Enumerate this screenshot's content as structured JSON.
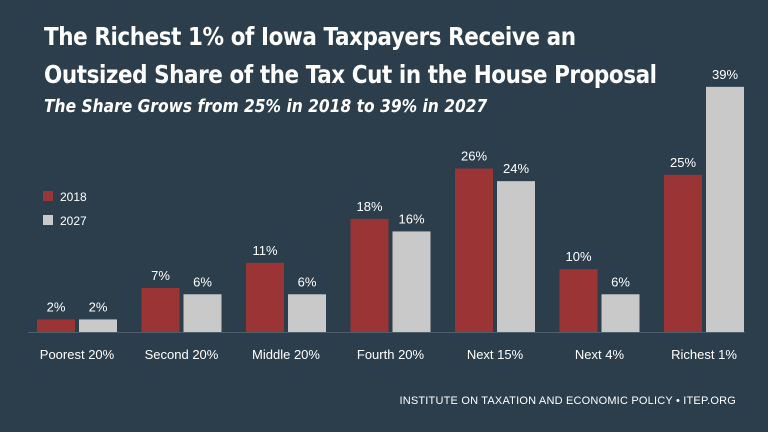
{
  "title_line1": "The Richest 1% of Iowa Taxpayers Receive an",
  "title_line2": "Outsized Share of the Tax Cut in the House Proposal",
  "subtitle": "The Share Grows from 25% in 2018 to 39% in 2027",
  "footer": "INSTITUTE ON TAXATION AND ECONOMIC POLICY • ITEP.ORG",
  "colors": {
    "background": "#2c3e4c",
    "series_2018": "#9b3535",
    "series_2027": "#c9c9c9"
  },
  "chart_data": {
    "type": "bar",
    "categories": [
      "Poorest 20%",
      "Second 20%",
      "Middle 20%",
      "Fourth 20%",
      "Next 15%",
      "Next 4%",
      "Richest 1%"
    ],
    "series": [
      {
        "name": "2018",
        "values": [
          2,
          7,
          11,
          18,
          26,
          10,
          25
        ],
        "labels": [
          "2%",
          "7%",
          "11%",
          "18%",
          "26%",
          "10%",
          "25%"
        ]
      },
      {
        "name": "2027",
        "values": [
          2,
          6,
          6,
          16,
          24,
          6,
          39
        ],
        "labels": [
          "2%",
          "6%",
          "6%",
          "16%",
          "24%",
          "6%",
          "39%"
        ]
      }
    ],
    "ylim": [
      0,
      40
    ],
    "grid": false,
    "legend_position": "left"
  }
}
